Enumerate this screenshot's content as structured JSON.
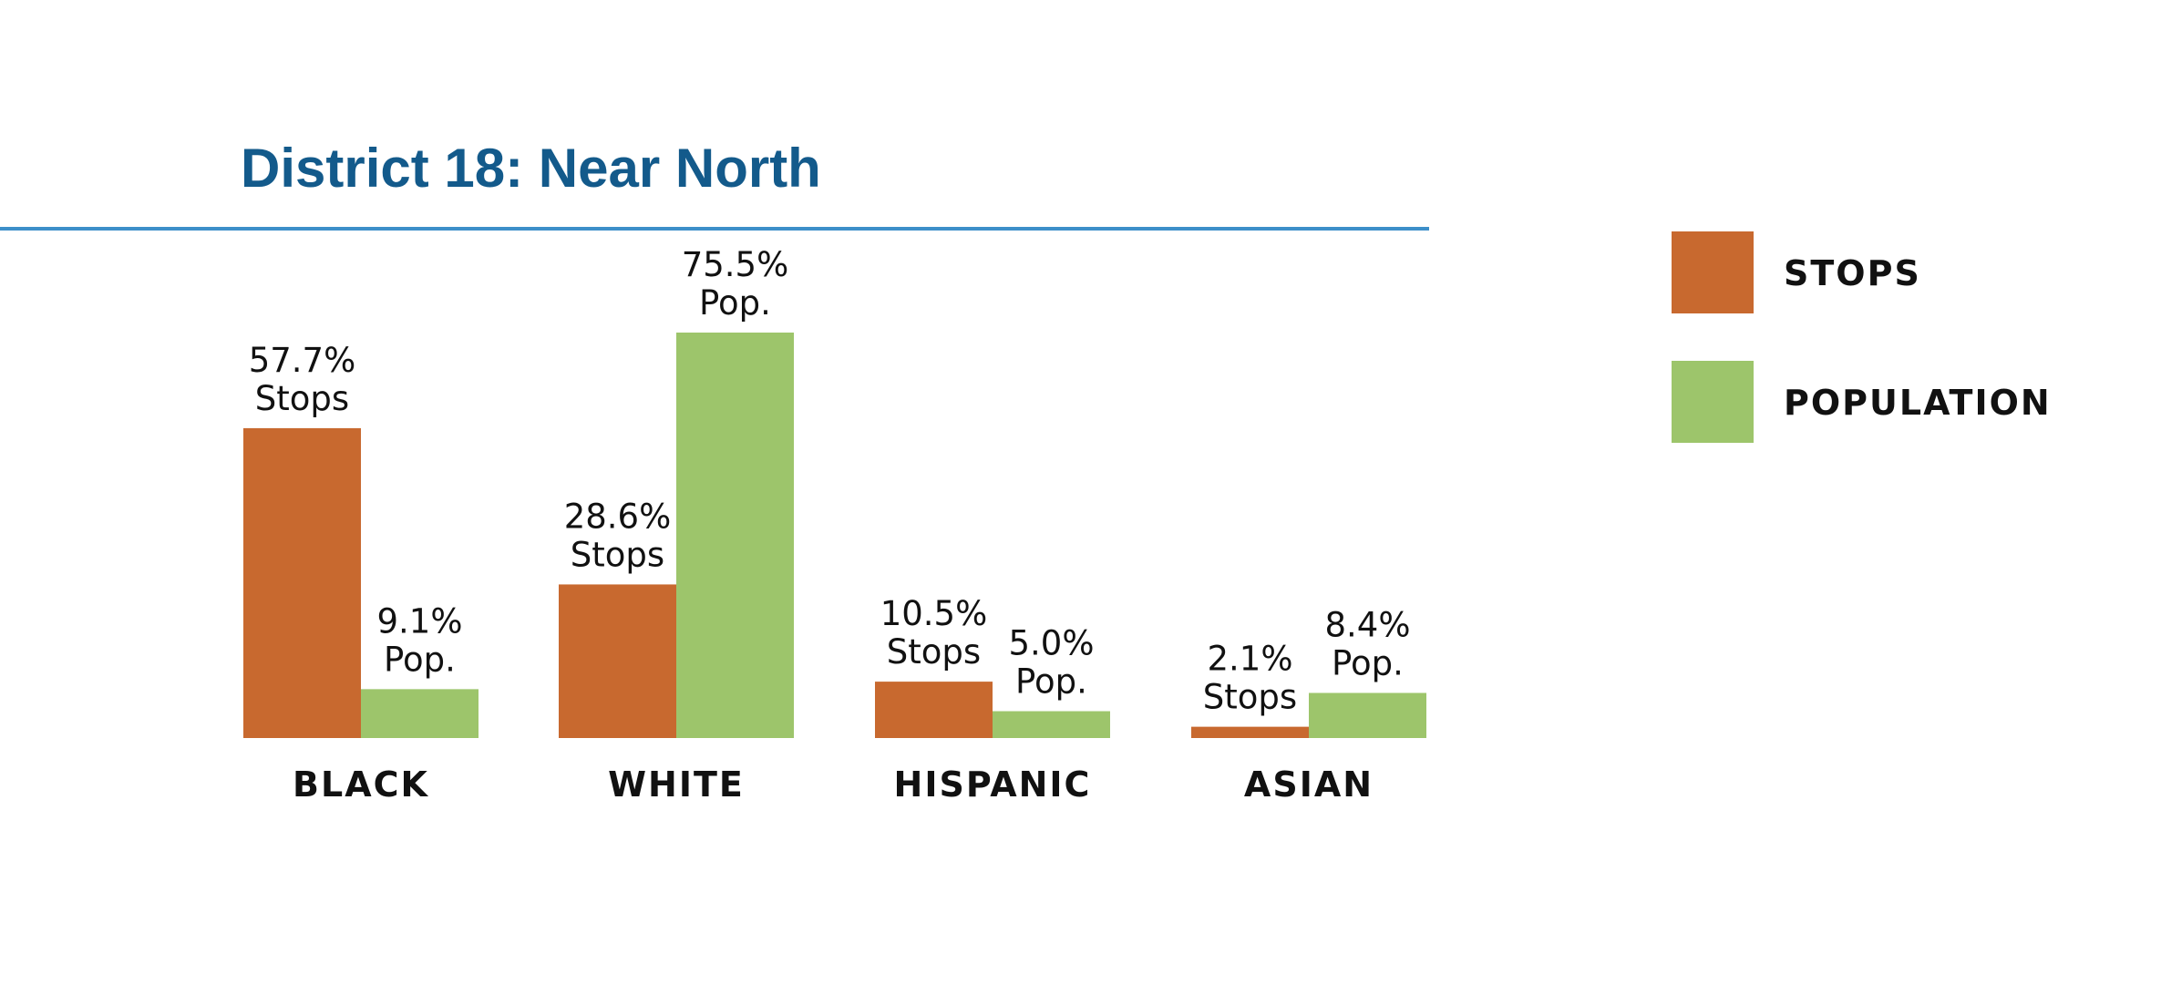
{
  "chart_data": {
    "type": "bar",
    "title": "District 18: Near North",
    "categories": [
      "BLACK",
      "WHITE",
      "HISPANIC",
      "ASIAN"
    ],
    "series": [
      {
        "name": "STOPS",
        "color": "#c8692f",
        "values": [
          57.7,
          28.6,
          10.5,
          2.1
        ],
        "labels": [
          "57.7%",
          "28.6%",
          "10.5%",
          "2.1%"
        ],
        "suffix": "Stops"
      },
      {
        "name": "POPULATION",
        "color": "#9dc56b",
        "values": [
          9.1,
          75.5,
          5.0,
          8.4
        ],
        "labels": [
          "9.1%",
          "75.5%",
          "5.0%",
          "8.4%"
        ],
        "suffix": "Pop."
      }
    ],
    "ylim": [
      0,
      75.5
    ],
    "xlabel": "",
    "ylabel": "",
    "grid": false,
    "legend": "right",
    "accent_color": "#135a8b",
    "rule_color": "#3d8fc9"
  }
}
